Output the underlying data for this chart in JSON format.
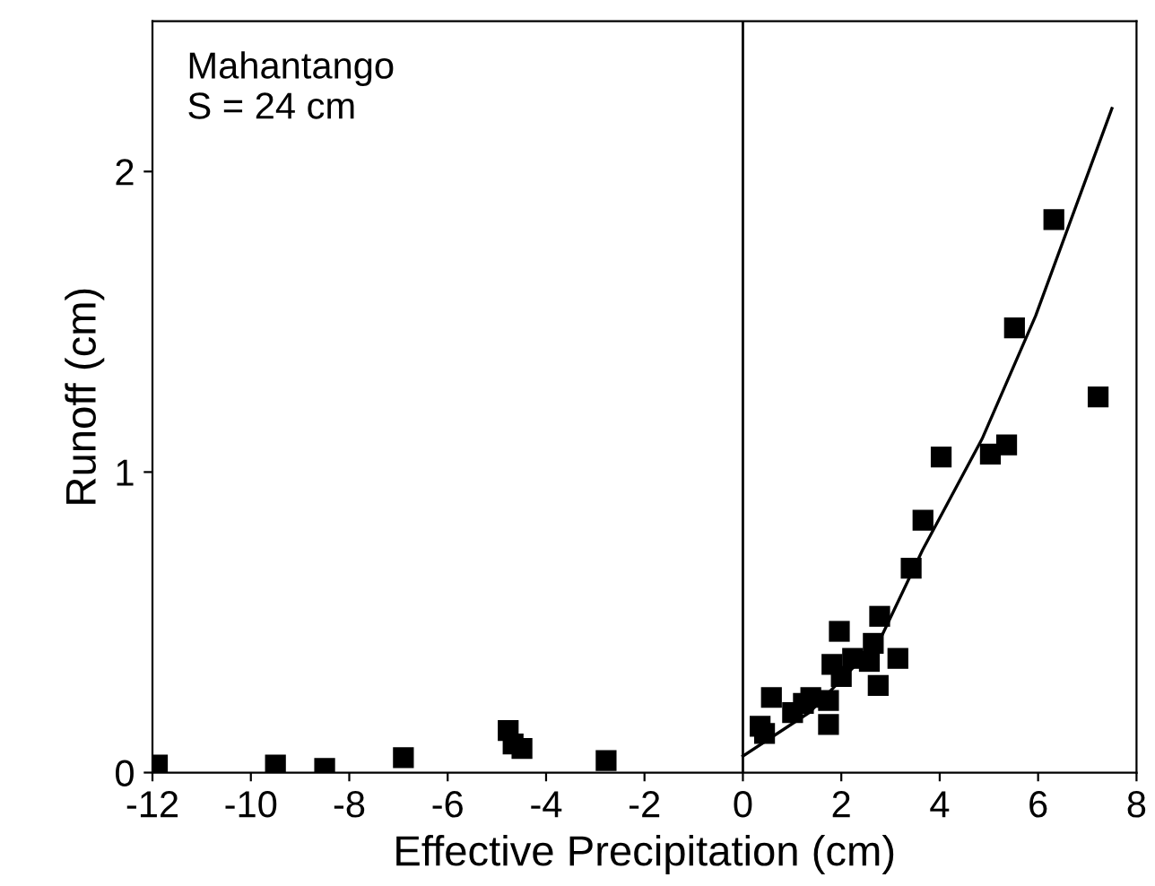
{
  "chart_data": {
    "type": "scatter",
    "xlabel": "Effective Precipitation (cm)",
    "ylabel": "Runoff (cm)",
    "annotations": [
      "Mahantango\nS = 24 cm"
    ],
    "xlim": [
      -12,
      8
    ],
    "xticks": [
      -12,
      -10,
      -8,
      -6,
      -4,
      -2,
      0,
      2,
      4,
      6,
      8
    ],
    "ylim": [
      0,
      2.5
    ],
    "yticks": [
      0,
      1,
      2
    ],
    "grid": false,
    "marker": "square",
    "ref_lines": [
      {
        "axis": "x",
        "value": 0,
        "color": "#000000",
        "line_style": "solid"
      }
    ],
    "series": [
      {
        "color": "#000000",
        "x": [
          -11.9,
          -9.5,
          -8.5,
          -6.9,
          -4.77,
          -4.67,
          -4.49,
          -2.78,
          0.35,
          0.44,
          0.58,
          1.01,
          1.23,
          1.38,
          1.74,
          1.74,
          1.81,
          1.96,
          2.0,
          2.23,
          2.57,
          2.65,
          2.75,
          2.78,
          3.15,
          3.42,
          3.66,
          4.03,
          5.03,
          5.36,
          5.52,
          6.32,
          7.22
        ],
        "values": [
          0.025,
          0.025,
          0.014,
          0.05,
          0.14,
          0.095,
          0.08,
          0.04,
          0.154,
          0.13,
          0.25,
          0.2,
          0.23,
          0.25,
          0.24,
          0.16,
          0.36,
          0.47,
          0.32,
          0.38,
          0.37,
          0.43,
          0.29,
          0.52,
          0.38,
          0.68,
          0.84,
          1.05,
          1.06,
          1.09,
          1.48,
          1.84,
          1.25
        ]
      },
      {
        "type": "line",
        "color": "#000000",
        "line_style": "solid",
        "marker": "none",
        "x": [
          0,
          1.35,
          2.78,
          3.65,
          4.86,
          5.95,
          7.5
        ],
        "values": [
          0.055,
          0.2,
          0.44,
          0.74,
          1.11,
          1.52,
          2.21
        ]
      }
    ]
  }
}
